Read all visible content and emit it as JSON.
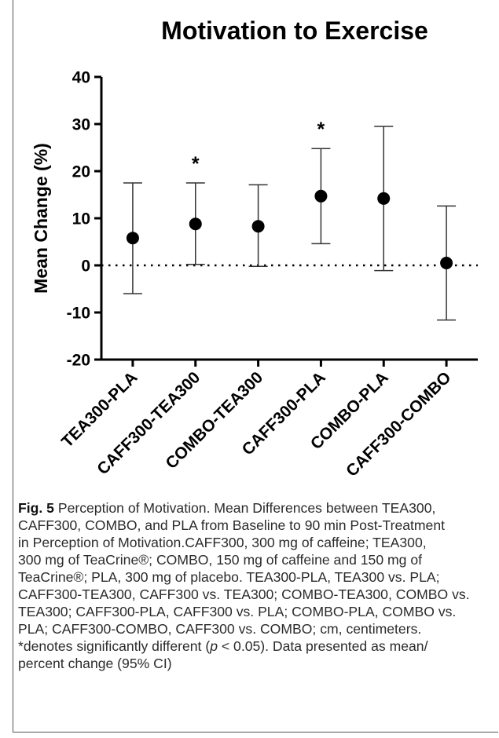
{
  "chart_data": {
    "type": "scatter",
    "title": "Motivation to Exercise",
    "ylabel": "Mean Change (%)",
    "xlabel": "",
    "ylim": [
      -20,
      40
    ],
    "yticks": [
      "-20",
      "-10",
      "0",
      "10",
      "20",
      "30",
      "40"
    ],
    "reference_line": 0,
    "categories": [
      "TEA300-PLA",
      "CAFF300-TEA300",
      "COMBO-TEA300",
      "CAFF300-PLA",
      "COMBO-PLA",
      "CAFF300-COMBO"
    ],
    "series": [
      {
        "values": [
          5.8,
          8.8,
          8.3,
          14.7,
          14.2,
          0.5
        ],
        "ci_low": [
          -6.0,
          0.2,
          -0.2,
          4.6,
          -1.1,
          -11.6
        ],
        "ci_high": [
          17.5,
          17.5,
          17.1,
          24.8,
          29.5,
          12.6
        ]
      }
    ],
    "significance_marks": [
      "",
      "*",
      "",
      "*",
      "",
      ""
    ],
    "grid": false
  },
  "caption": {
    "label": "Fig. 5",
    "lines": [
      " Perception of Motivation. Mean Differences between TEA300,",
      "CAFF300, COMBO, and PLA from Baseline to 90 min Post-Treatment",
      "in Perception of Motivation.CAFF300, 300 mg of caffeine; TEA300,",
      "300 mg of TeaCrine®; COMBO, 150 mg of caffeine and 150 mg of",
      "TeaCrine®; PLA, 300 mg of placebo. TEA300-PLA, TEA300 vs. PLA;",
      "CAFF300-TEA300, CAFF300 vs. TEA300; COMBO-TEA300, COMBO vs.",
      "TEA300; CAFF300-PLA, CAFF300 vs. PLA; COMBO-PLA, COMBO vs.",
      "PLA; CAFF300-COMBO, CAFF300 vs. COMBO; cm, centimeters.",
      "*denotes significantly different (",
      "percent change (95% CI)"
    ],
    "p_symbol": "p",
    "p_rest": " < 0.05). Data presented as mean/"
  }
}
